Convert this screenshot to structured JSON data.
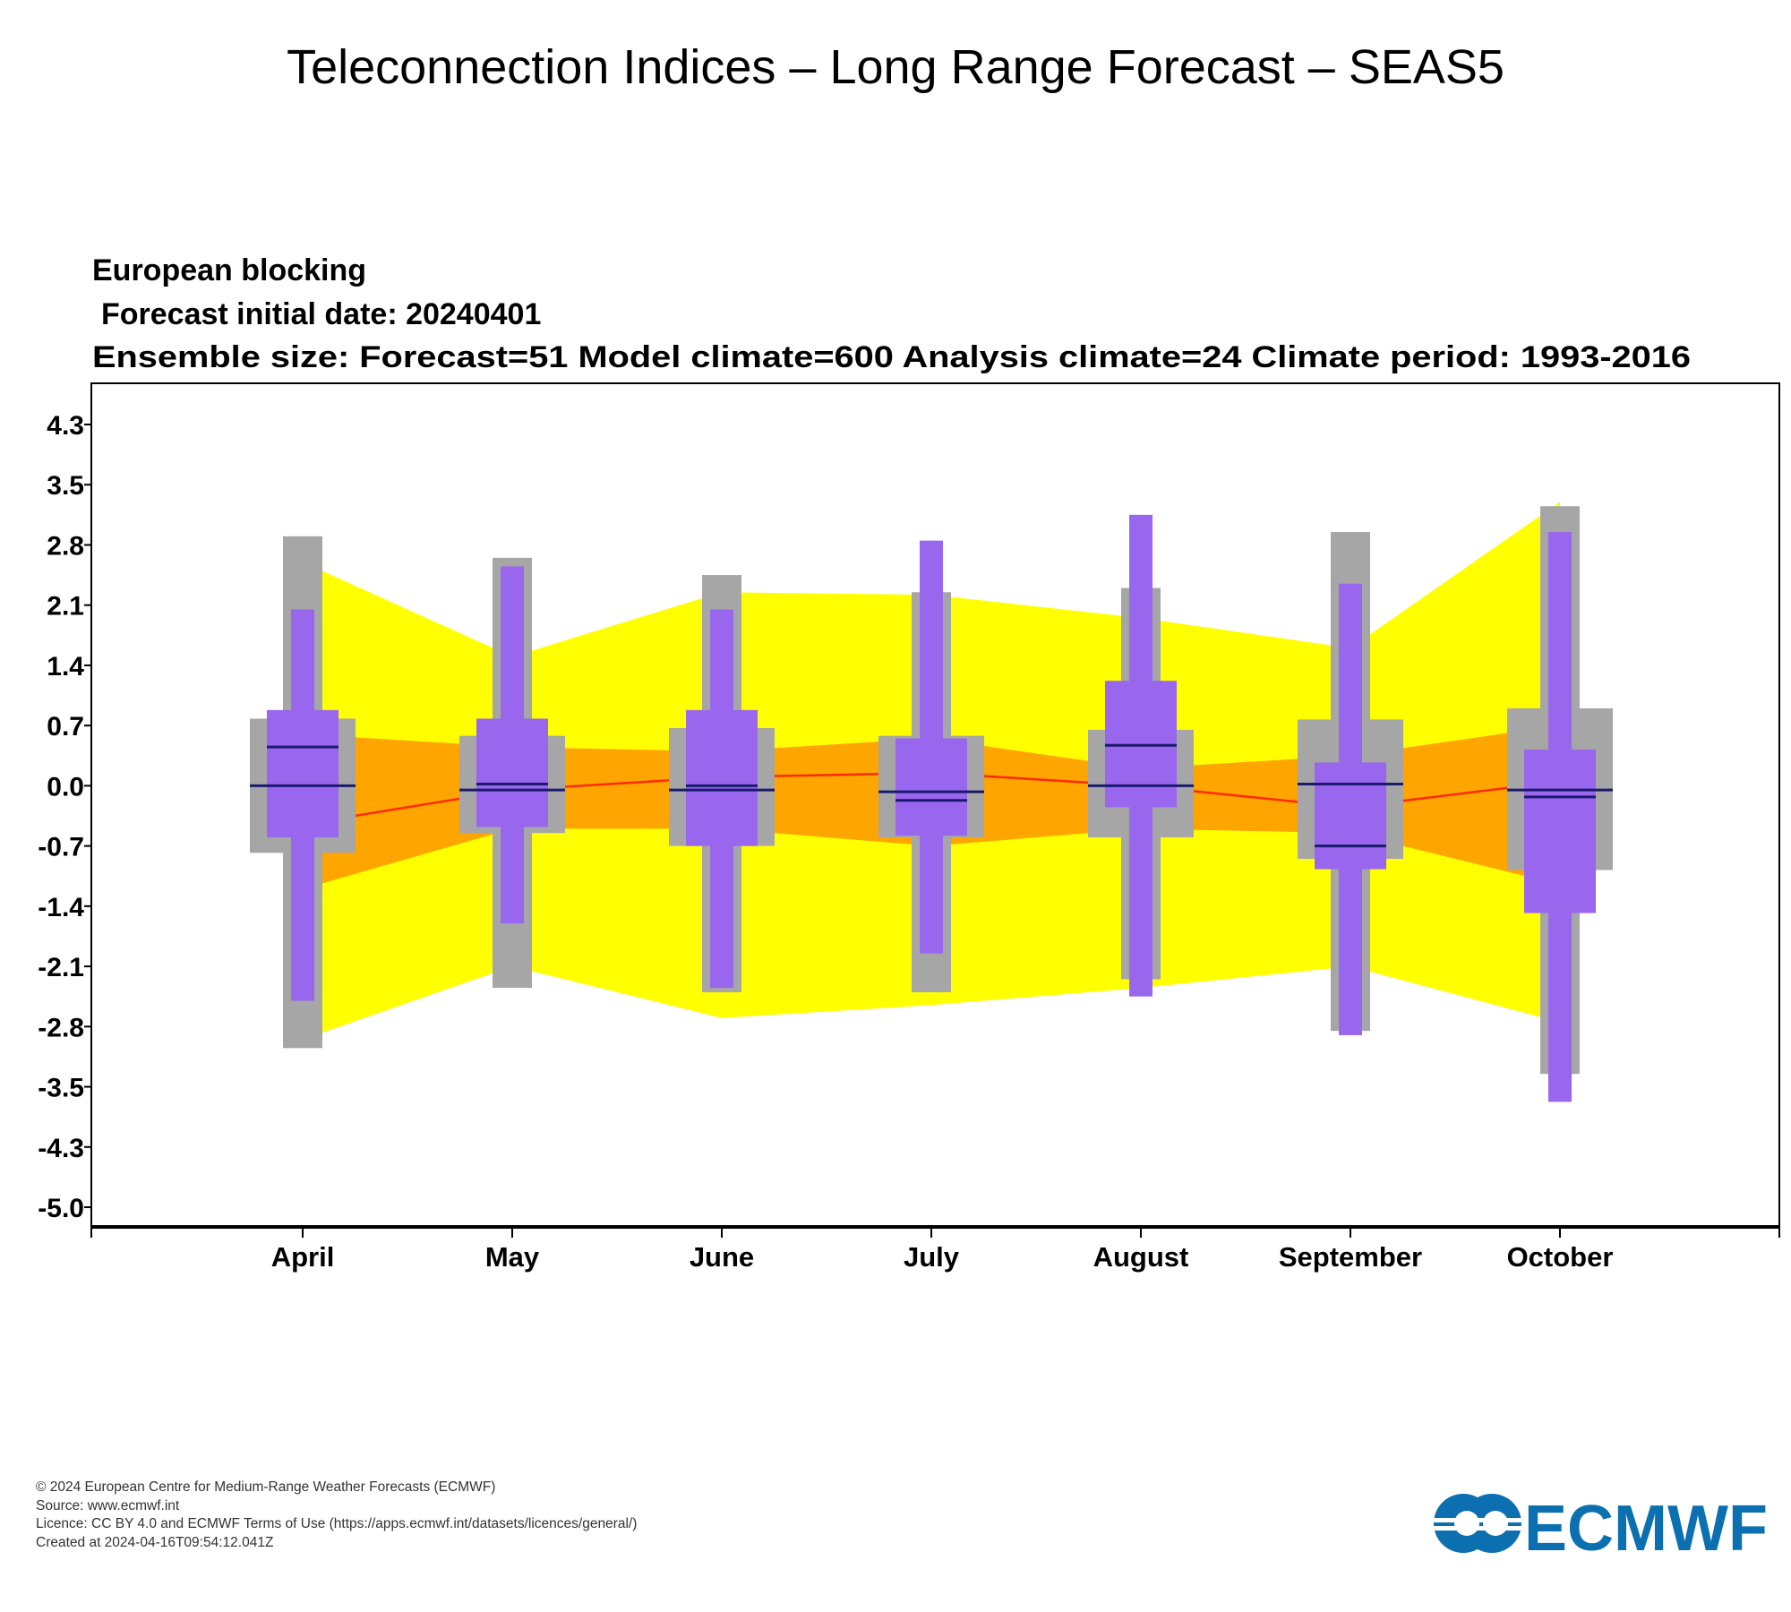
{
  "page": {
    "title": "Teleconnection Indices – Long Range Forecast – SEAS5"
  },
  "chart_data": {
    "type": "box",
    "title": "European blocking",
    "subtitle_lines": [
      "Forecast initial date: 20240401",
      "Ensemble size: Forecast=51 Model climate=600 Analysis climate=24   Climate period: 1993-2016"
    ],
    "categories": [
      "April",
      "May",
      "June",
      "July",
      "August",
      "September",
      "October"
    ],
    "ylim": [
      -5.0,
      4.3
    ],
    "yticks": [
      "4.3",
      "3.5",
      "2.8",
      "2.1",
      "1.4",
      "0.7",
      "0.0",
      "-0.7",
      "-1.4",
      "-2.1",
      "-2.8",
      "-3.5",
      "-4.3",
      "-5.0"
    ],
    "xlabel": "",
    "ylabel": "",
    "grid": false,
    "analysis_climate": {
      "outer_upper": [
        2.6,
        1.5,
        2.25,
        2.22,
        1.95,
        1.6,
        3.3
      ],
      "outer_lower": [
        -2.95,
        -2.1,
        -2.7,
        -2.55,
        -2.35,
        -2.1,
        -2.75
      ],
      "inner_upper": [
        0.6,
        0.45,
        0.4,
        0.55,
        0.2,
        0.35,
        0.7
      ],
      "inner_lower": [
        -1.2,
        -0.5,
        -0.5,
        -0.7,
        -0.5,
        -0.55,
        -1.15
      ],
      "median": [
        -0.45,
        -0.05,
        0.1,
        0.15,
        0.0,
        -0.25,
        0.05
      ]
    },
    "model_climate": {
      "min": [
        -3.05,
        -2.35,
        -2.4,
        -2.4,
        -2.25,
        -2.85,
        -3.35
      ],
      "p10": [
        -0.78,
        -0.55,
        -0.7,
        -0.6,
        -0.6,
        -0.85,
        -0.98
      ],
      "median": [
        0.0,
        -0.05,
        -0.05,
        -0.07,
        0.0,
        0.02,
        -0.05
      ],
      "p90": [
        0.78,
        0.58,
        0.67,
        0.58,
        0.65,
        0.77,
        0.9
      ],
      "max": [
        2.9,
        2.65,
        2.45,
        2.25,
        2.3,
        2.95,
        3.25
      ]
    },
    "forecast": {
      "min": [
        -2.5,
        -1.6,
        -2.35,
        -1.95,
        -2.45,
        -2.9,
        -3.7
      ],
      "p25": [
        -0.6,
        -0.48,
        -0.7,
        -0.58,
        -0.25,
        -0.97,
        -1.48
      ],
      "median": [
        0.45,
        0.02,
        0.0,
        -0.17,
        0.47,
        -0.7,
        -0.13
      ],
      "p75": [
        0.88,
        0.78,
        0.88,
        0.55,
        1.22,
        0.27,
        0.42
      ],
      "max": [
        2.05,
        2.55,
        2.05,
        2.85,
        3.15,
        2.35,
        2.95
      ]
    },
    "colors": {
      "outer_band": "#ffff00",
      "inner_band": "#ffa500",
      "analysis_median": "#ff2a00",
      "model_box": "#a6a6a6",
      "forecast_box": "#9966ee",
      "median_line": "#1a1a6e"
    }
  },
  "footer": {
    "lines": [
      "© 2024 European Centre for Medium-Range Weather Forecasts (ECMWF)",
      "Source: www.ecmwf.int",
      "Licence: CC BY 4.0 and ECMWF Terms of Use (https://apps.ecmwf.int/datasets/licences/general/)",
      "Created at 2024-04-16T09:54:12.041Z"
    ]
  },
  "logo": {
    "text": "ECMWF",
    "color": "#0c6fb0"
  }
}
